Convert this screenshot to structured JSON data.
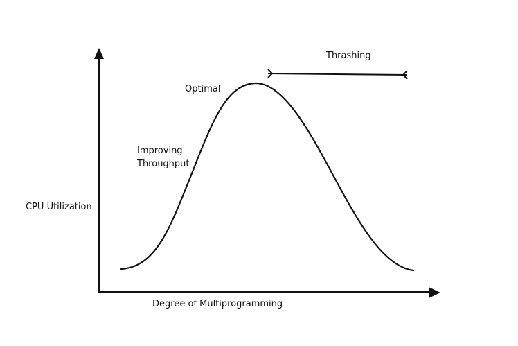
{
  "diagram": {
    "title": "",
    "y_axis_label": "CPU Utilization",
    "x_axis_label": "Degree of Multiprogramming",
    "annotations": {
      "optimal": "Optimal",
      "improving_line1": "Improving",
      "improving_line2": "Throughput",
      "thrashing": "Thrashing"
    },
    "colors": {
      "stroke": "#111111",
      "background": "#ffffff"
    }
  }
}
